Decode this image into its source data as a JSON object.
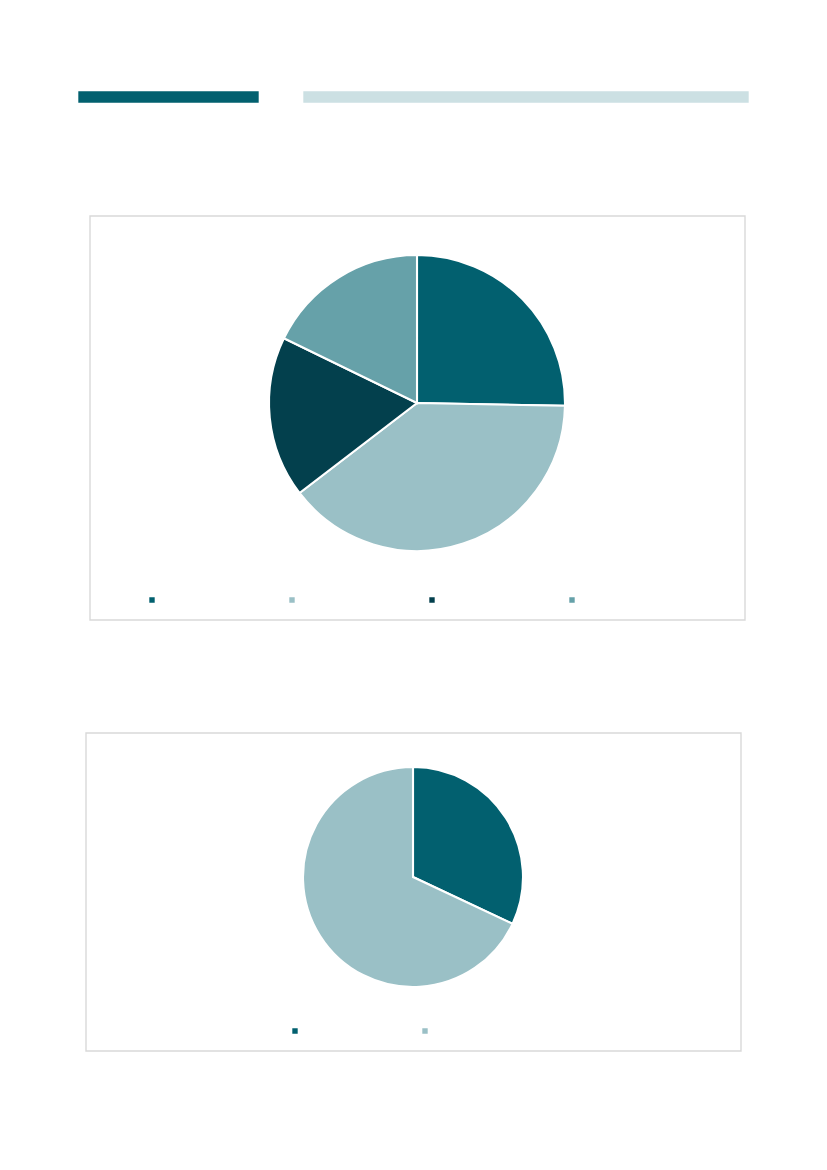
{
  "chart_data": [
    {
      "type": "pie",
      "categories": [
        null,
        null,
        null,
        null
      ],
      "values": [
        25.3,
        39.3,
        17.6,
        17.8
      ],
      "colors": [
        "#02606f",
        "#9ac0c6",
        "#03404d",
        "#66a1a9"
      ]
    },
    {
      "type": "pie",
      "categories": [
        null,
        null
      ],
      "values": [
        32,
        68
      ],
      "colors": [
        "#02606f",
        "#9ac0c6"
      ]
    }
  ]
}
